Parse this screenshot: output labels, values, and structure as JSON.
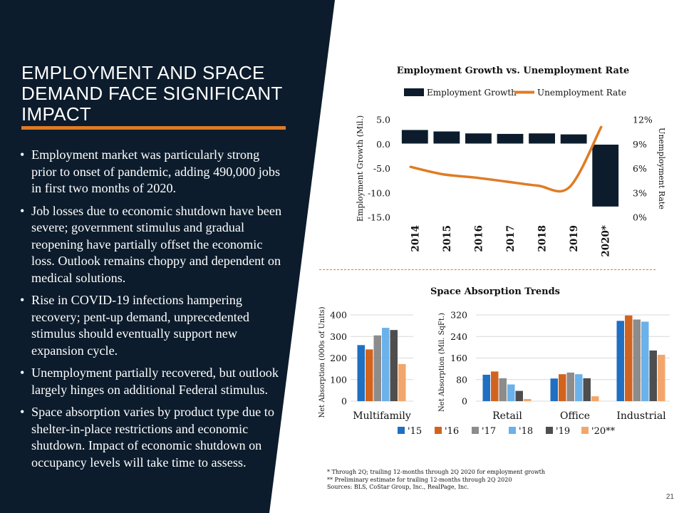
{
  "slide": {
    "title": "EMPLOYMENT AND SPACE DEMAND FACE SIGNIFICANT IMPACT",
    "bullets": [
      "Employment market was particularly strong prior to onset of pandemic, adding 490,000 jobs in first two months of 2020.",
      "Job losses due to economic shutdown have been severe; government stimulus and gradual reopening have partially offset the economic loss. Outlook remains choppy and dependent on medical solutions.",
      "Rise in COVID-19 infections hampering recovery; pent-up demand, unprecedented stimulus should eventually support new expansion cycle.",
      "Unemployment partially recovered, but outlook largely hinges on additional Federal stimulus.",
      "Space absorption varies by product type due to shelter-in-place restrictions and economic shutdown. Impact of economic shutdown on occupancy levels will take time to assess."
    ],
    "footnotes": [
      "* Through 2Q; trailing 12-months through 2Q 2020 for employment growth",
      "** Preliminary estimate for trailing 12-months through 2Q 2020",
      "Sources: BLS, CoStar Group, Inc., RealPage, Inc."
    ],
    "page_number": "21",
    "colors": {
      "navy": "#0c1c2c",
      "orange": "#e07b24"
    }
  },
  "chart_data": [
    {
      "type": "bar",
      "title": "Employment Growth vs. Unemployment Rate",
      "categories": [
        "2014",
        "2015",
        "2016",
        "2017",
        "2018",
        "2019",
        "2020*"
      ],
      "series": [
        {
          "name": "Employment Growth",
          "axis": "left",
          "type": "bar",
          "color": "#0c1c2c",
          "values": [
            3.0,
            2.7,
            2.3,
            2.2,
            2.3,
            2.1,
            -12.9
          ]
        },
        {
          "name": "Unemployment Rate",
          "axis": "right",
          "type": "line",
          "color": "#e07b24",
          "values": [
            6.2,
            5.3,
            4.9,
            4.4,
            3.9,
            3.7,
            11.1
          ]
        }
      ],
      "ylabel": "Employment Growth (Mil.)",
      "y2label": "Unemployment Rate",
      "ylim": [
        -15,
        5
      ],
      "y2lim": [
        0,
        12
      ],
      "yticks": [
        "5.0",
        "0.0",
        "-5.0",
        "-10.0",
        "-15.0"
      ],
      "y2ticks": [
        "12%",
        "9%",
        "6%",
        "3%",
        "0%"
      ],
      "legend": "top"
    },
    {
      "type": "bar",
      "title": "Space Absorption Trends",
      "panels": [
        {
          "ylabel": "Net Absorption (000s of Units)",
          "ylim": [
            0,
            400
          ],
          "yticks": [
            "400",
            "300",
            "200",
            "100",
            "0"
          ],
          "categories": [
            "Multifamily"
          ],
          "values": [
            [
              260,
              240,
              305,
              340,
              330,
              172
            ]
          ]
        },
        {
          "ylabel": "Net Absorption (Mil. SqFt.)",
          "ylim": [
            0,
            320
          ],
          "yticks": [
            "320",
            "240",
            "160",
            "80",
            "0"
          ],
          "categories": [
            "Retail",
            "Office",
            "Industrial"
          ],
          "values": [
            [
              98,
              110,
              85,
              62,
              38,
              8
            ],
            [
              84,
              100,
              106,
              100,
              85,
              18
            ],
            [
              298,
              318,
              303,
              295,
              188,
              172
            ]
          ]
        }
      ],
      "series": [
        {
          "name": "'15",
          "color": "#1f6fc2"
        },
        {
          "name": "'16",
          "color": "#d2631f"
        },
        {
          "name": "'17",
          "color": "#8c8c8c"
        },
        {
          "name": "'18",
          "color": "#6bb1ea"
        },
        {
          "name": "'19",
          "color": "#4e4e4e"
        },
        {
          "name": "'20**",
          "color": "#f2a66c"
        }
      ],
      "legend": "bottom"
    }
  ]
}
